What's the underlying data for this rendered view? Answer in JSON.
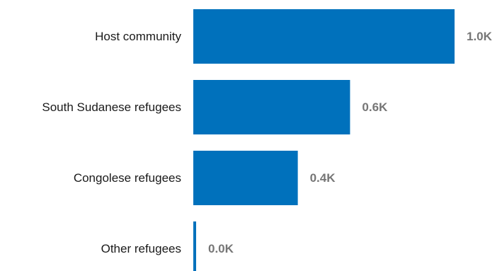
{
  "chart_data": {
    "type": "bar",
    "orientation": "horizontal",
    "categories": [
      "Host community",
      "South Sudanese refugees",
      "Congolese refugees",
      "Other refugees"
    ],
    "values": [
      1.0,
      0.6,
      0.4,
      0.0
    ],
    "value_labels": [
      "1.0K",
      "0.6K",
      "0.4K",
      "0.0K"
    ],
    "unit": "K",
    "xlim": [
      0,
      1.0
    ],
    "bar_color": "#0071BC",
    "value_label_color": "#767676",
    "grid": false,
    "legend": "none",
    "title": "",
    "xlabel": "",
    "ylabel": ""
  }
}
